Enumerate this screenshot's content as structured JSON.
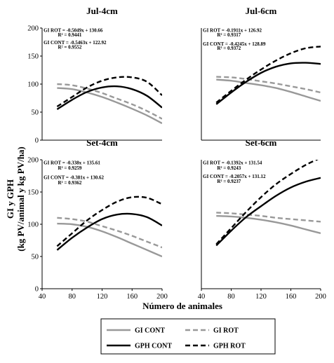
{
  "figure": {
    "ylabel_line1": "GI y GPH",
    "ylabel_line2": "(kg PV/animal y kg PV/ha)",
    "xlabel": "Número de animales"
  },
  "legend": {
    "items": [
      {
        "label": "GI CONT",
        "style": "gi_cont"
      },
      {
        "label": "GI ROT",
        "style": "gi_rot"
      },
      {
        "label": "GPH CONT",
        "style": "gph_cont"
      },
      {
        "label": "GPH ROT",
        "style": "gph_rot"
      }
    ]
  },
  "styles": {
    "gi_cont": {
      "color": "#999999",
      "dash": "solid",
      "width": 2.4
    },
    "gi_rot": {
      "color": "#999999",
      "dash": "dashed",
      "width": 2.4
    },
    "gph_cont": {
      "color": "#000000",
      "dash": "solid",
      "width": 2.4
    },
    "gph_rot": {
      "color": "#000000",
      "dash": "dashed",
      "width": 2.4
    }
  },
  "chart_data": [
    {
      "type": "line",
      "title": "Jul-4cm",
      "xlim": [
        40,
        200
      ],
      "ylim": [
        0,
        200
      ],
      "xticks": [],
      "yticks": [
        0,
        50,
        100,
        150,
        200
      ],
      "annotations": [
        {
          "text": "GI ROT = -0.5049x + 130.66",
          "xd": 42,
          "yd": 193
        },
        {
          "text": "R² = 0.9441",
          "xd": 61,
          "yd": 185
        },
        {
          "text": "GI CONT = -0.5463x + 122.92",
          "xd": 42,
          "yd": 171
        },
        {
          "text": "R² = 0.9552",
          "xd": 61,
          "yd": 163
        }
      ],
      "series": [
        {
          "style": "gi_cont",
          "x": [
            60,
            80,
            100,
            120,
            140,
            160,
            180,
            200
          ],
          "y": [
            93,
            91,
            85,
            77,
            67,
            56,
            44,
            30
          ]
        },
        {
          "style": "gi_rot",
          "x": [
            60,
            80,
            100,
            120,
            140,
            160,
            180,
            200
          ],
          "y": [
            100,
            98,
            92,
            84,
            74,
            64,
            52,
            38
          ]
        },
        {
          "style": "gph_cont",
          "x": [
            60,
            80,
            100,
            120,
            140,
            160,
            180,
            200
          ],
          "y": [
            55,
            72,
            86,
            94,
            96,
            91,
            79,
            58
          ]
        },
        {
          "style": "gph_rot",
          "x": [
            60,
            80,
            100,
            120,
            140,
            160,
            180,
            200
          ],
          "y": [
            60,
            77,
            94,
            106,
            112,
            112,
            104,
            80
          ]
        }
      ]
    },
    {
      "type": "line",
      "title": "Jul-6cm",
      "xlim": [
        40,
        200
      ],
      "ylim": [
        0,
        200
      ],
      "xticks": [],
      "yticks": [],
      "annotations": [
        {
          "text": "GI ROT = -0.1911x + 126.92",
          "xd": 42,
          "yd": 193
        },
        {
          "text": "R² = 0.9317",
          "xd": 61,
          "yd": 185
        },
        {
          "text": "GI CONT = -0.4245x + 128.89",
          "xd": 42,
          "yd": 169
        },
        {
          "text": "R² = 0.9372",
          "xd": 61,
          "yd": 161
        }
      ],
      "series": [
        {
          "style": "gi_cont",
          "x": [
            60,
            80,
            100,
            120,
            140,
            160,
            180,
            200
          ],
          "y": [
            108,
            106,
            102,
            98,
            93,
            86,
            78,
            70
          ]
        },
        {
          "style": "gi_rot",
          "x": [
            60,
            80,
            100,
            120,
            140,
            160,
            180,
            200
          ],
          "y": [
            113,
            112,
            109,
            105,
            101,
            96,
            91,
            85
          ]
        },
        {
          "style": "gph_cont",
          "x": [
            60,
            80,
            100,
            120,
            140,
            160,
            180,
            200
          ],
          "y": [
            64,
            85,
            104,
            120,
            131,
            137,
            138,
            136
          ]
        },
        {
          "style": "gph_rot",
          "x": [
            60,
            80,
            100,
            120,
            140,
            160,
            180,
            200
          ],
          "y": [
            67,
            88,
            108,
            126,
            142,
            155,
            164,
            167
          ]
        }
      ]
    },
    {
      "type": "line",
      "title": "Set-4cm",
      "xlim": [
        40,
        200
      ],
      "ylim": [
        0,
        200
      ],
      "xticks": [
        40,
        80,
        120,
        160,
        200
      ],
      "yticks": [
        0,
        50,
        100,
        150,
        200
      ],
      "annotations": [
        {
          "text": "GI ROT = -0.338x + 135.61",
          "xd": 42,
          "yd": 193
        },
        {
          "text": "R² = 0.9259",
          "xd": 61,
          "yd": 185
        },
        {
          "text": "GI CONT = -0.381x + 130.62",
          "xd": 42,
          "yd": 170
        },
        {
          "text": "R² = 0.9362",
          "xd": 61,
          "yd": 162
        }
      ],
      "series": [
        {
          "style": "gi_cont",
          "x": [
            60,
            80,
            100,
            120,
            140,
            160,
            180,
            200
          ],
          "y": [
            101,
            100,
            96,
            89,
            80,
            70,
            60,
            50
          ]
        },
        {
          "style": "gi_rot",
          "x": [
            60,
            80,
            100,
            120,
            140,
            160,
            180,
            200
          ],
          "y": [
            110,
            108,
            104,
            97,
            90,
            82,
            73,
            64
          ]
        },
        {
          "style": "gph_cont",
          "x": [
            60,
            80,
            100,
            120,
            140,
            160,
            180,
            200
          ],
          "y": [
            60,
            79,
            95,
            108,
            115,
            116,
            111,
            98
          ]
        },
        {
          "style": "gph_rot",
          "x": [
            60,
            80,
            100,
            120,
            140,
            160,
            180,
            200
          ],
          "y": [
            66,
            86,
            106,
            122,
            135,
            142,
            141,
            131
          ]
        }
      ]
    },
    {
      "type": "line",
      "title": "Set-6cm",
      "xlim": [
        40,
        200
      ],
      "ylim": [
        0,
        200
      ],
      "xticks": [
        40,
        80,
        120,
        160,
        200
      ],
      "yticks": [],
      "annotations": [
        {
          "text": "GI ROT = -0.1392x + 131.54",
          "xd": 42,
          "yd": 193
        },
        {
          "text": "R² = 0.9243",
          "xd": 61,
          "yd": 185
        },
        {
          "text": "GI CONT = -0.2057x + 131.12",
          "xd": 42,
          "yd": 172
        },
        {
          "text": "R² = 0.9237",
          "xd": 61,
          "yd": 164
        }
      ],
      "series": [
        {
          "style": "gi_cont",
          "x": [
            60,
            80,
            100,
            120,
            140,
            160,
            180,
            200
          ],
          "y": [
            113,
            112,
            110,
            107,
            103,
            98,
            92,
            86
          ]
        },
        {
          "style": "gi_rot",
          "x": [
            60,
            80,
            100,
            120,
            140,
            160,
            180,
            200
          ],
          "y": [
            118,
            117,
            115,
            113,
            110,
            108,
            106,
            104
          ]
        },
        {
          "style": "gph_cont",
          "x": [
            60,
            80,
            100,
            120,
            140,
            160,
            180,
            200
          ],
          "y": [
            67,
            90,
            111,
            128,
            144,
            157,
            166,
            172
          ]
        },
        {
          "style": "gph_rot",
          "x": [
            60,
            80,
            100,
            120,
            140,
            160,
            180,
            200
          ],
          "y": [
            69,
            94,
            119,
            142,
            162,
            178,
            192,
            203
          ]
        }
      ]
    }
  ]
}
